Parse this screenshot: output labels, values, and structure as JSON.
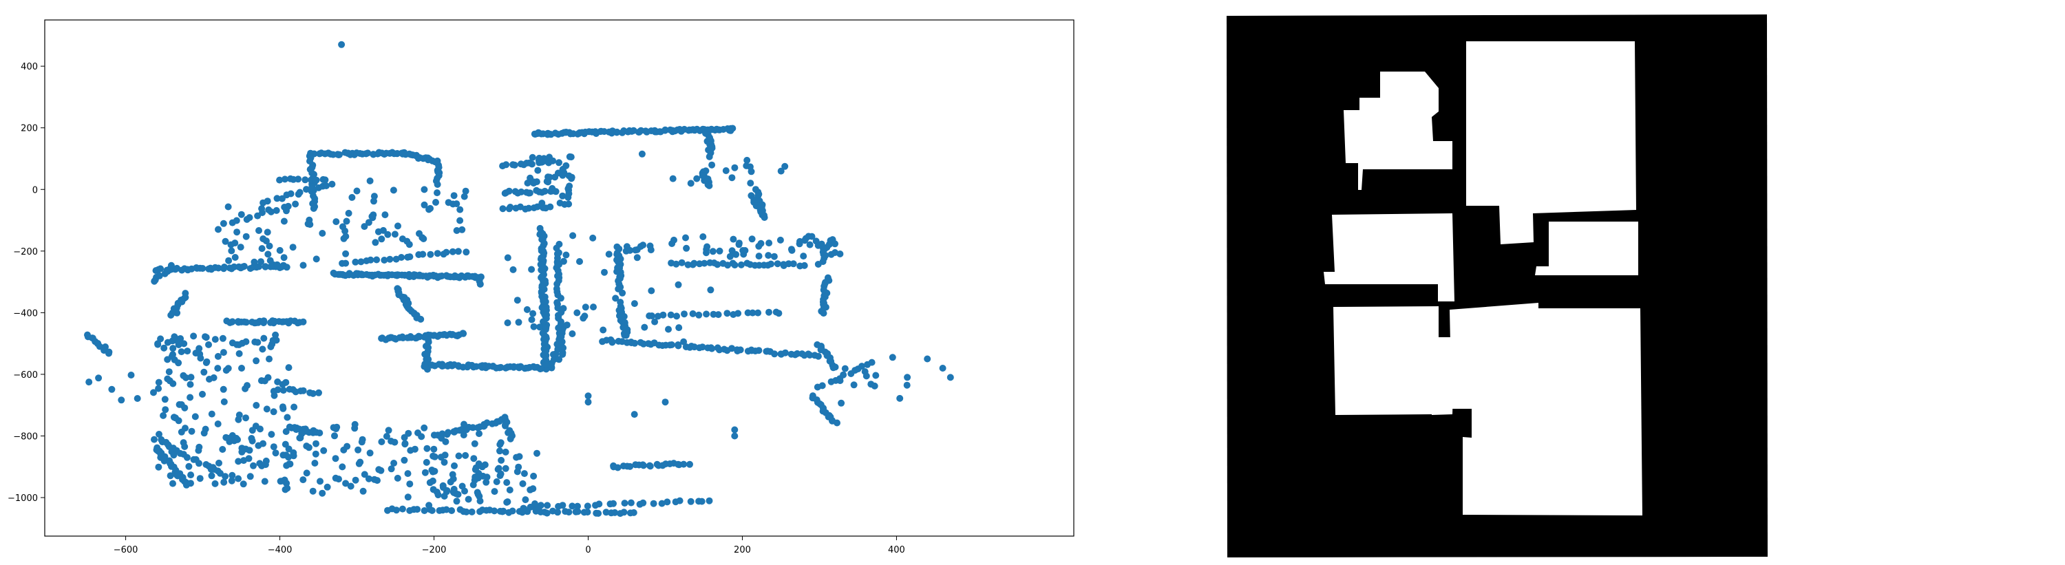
{
  "chart_data": [
    {
      "type": "scatter",
      "title": "",
      "xlabel": "",
      "ylabel": "",
      "xlim": [
        -705,
        630
      ],
      "ylim": [
        -1125,
        550
      ],
      "x_ticks": [
        -600,
        -400,
        -200,
        0,
        200,
        400
      ],
      "y_ticks": [
        -1000,
        -800,
        -600,
        -400,
        -200,
        0,
        200,
        400
      ],
      "grid": false,
      "legend": "none",
      "marker_color": "#1f77b4",
      "outliers": [
        {
          "x": -320,
          "y": 470
        },
        {
          "x": -300,
          "y": -5
        },
        {
          "x": 70,
          "y": 115
        },
        {
          "x": 110,
          "y": 35
        },
        {
          "x": 190,
          "y": -780
        },
        {
          "x": 190,
          "y": -800
        },
        {
          "x": 100,
          "y": -690
        },
        {
          "x": 60,
          "y": -730
        },
        {
          "x": 0,
          "y": -670
        },
        {
          "x": 0,
          "y": -690
        },
        {
          "x": -20,
          "y": -150
        },
        {
          "x": 440,
          "y": -550
        },
        {
          "x": 460,
          "y": -580
        },
        {
          "x": 470,
          "y": -610
        },
        {
          "x": 395,
          "y": -545
        }
      ],
      "segments": [
        {
          "x1": -72,
          "y1": 180,
          "x2": 190,
          "y2": 195,
          "n": 90
        },
        {
          "x1": -360,
          "y1": 115,
          "x2": -240,
          "y2": 118,
          "n": 40
        },
        {
          "x1": -240,
          "y1": 118,
          "x2": -195,
          "y2": 90,
          "n": 18
        },
        {
          "x1": -195,
          "y1": 88,
          "x2": -195,
          "y2": 20,
          "n": 10
        },
        {
          "x1": -360,
          "y1": 115,
          "x2": -355,
          "y2": -60,
          "n": 22
        },
        {
          "x1": -400,
          "y1": 30,
          "x2": -340,
          "y2": 35,
          "n": 10
        },
        {
          "x1": -420,
          "y1": -40,
          "x2": -330,
          "y2": 20,
          "n": 14
        },
        {
          "x1": -470,
          "y1": -110,
          "x2": -380,
          "y2": -50,
          "n": 12
        },
        {
          "x1": -560,
          "y1": -260,
          "x2": -390,
          "y2": -250,
          "n": 45
        },
        {
          "x1": -565,
          "y1": -300,
          "x2": -540,
          "y2": -250,
          "n": 8
        },
        {
          "x1": -330,
          "y1": -275,
          "x2": -140,
          "y2": -285,
          "n": 80
        },
        {
          "x1": -320,
          "y1": -240,
          "x2": -160,
          "y2": -200,
          "n": 22
        },
        {
          "x1": -140,
          "y1": -280,
          "x2": -140,
          "y2": -310,
          "n": 6
        },
        {
          "x1": -250,
          "y1": -320,
          "x2": -220,
          "y2": -420,
          "n": 20
        },
        {
          "x1": -270,
          "y1": -485,
          "x2": -160,
          "y2": -470,
          "n": 40
        },
        {
          "x1": -210,
          "y1": -490,
          "x2": -210,
          "y2": -580,
          "n": 12
        },
        {
          "x1": -210,
          "y1": -570,
          "x2": -50,
          "y2": -580,
          "n": 55
        },
        {
          "x1": -50,
          "y1": -580,
          "x2": -30,
          "y2": -440,
          "n": 18
        },
        {
          "x1": -60,
          "y1": -130,
          "x2": -55,
          "y2": -570,
          "n": 75
        },
        {
          "x1": -40,
          "y1": -180,
          "x2": -35,
          "y2": -550,
          "n": 35
        },
        {
          "x1": -110,
          "y1": -10,
          "x2": -40,
          "y2": -5,
          "n": 15
        },
        {
          "x1": -110,
          "y1": 80,
          "x2": -40,
          "y2": 90,
          "n": 15
        },
        {
          "x1": -110,
          "y1": -60,
          "x2": -50,
          "y2": -60,
          "n": 12
        },
        {
          "x1": 155,
          "y1": 180,
          "x2": 160,
          "y2": 110,
          "n": 14
        },
        {
          "x1": 150,
          "y1": 60,
          "x2": 155,
          "y2": 10,
          "n": 10
        },
        {
          "x1": 220,
          "y1": 0,
          "x2": 225,
          "y2": -80,
          "n": 15
        },
        {
          "x1": 210,
          "y1": -20,
          "x2": 230,
          "y2": -90,
          "n": 8
        },
        {
          "x1": 20,
          "y1": -490,
          "x2": 300,
          "y2": -540,
          "n": 60
        },
        {
          "x1": 40,
          "y1": -380,
          "x2": 50,
          "y2": -470,
          "n": 25
        },
        {
          "x1": 40,
          "y1": -190,
          "x2": 40,
          "y2": -320,
          "n": 20
        },
        {
          "x1": 50,
          "y1": -200,
          "x2": 80,
          "y2": -180,
          "n": 6
        },
        {
          "x1": 110,
          "y1": -240,
          "x2": 280,
          "y2": -245,
          "n": 30
        },
        {
          "x1": 80,
          "y1": -410,
          "x2": 250,
          "y2": -400,
          "n": 20
        },
        {
          "x1": 310,
          "y1": -290,
          "x2": 305,
          "y2": -400,
          "n": 18
        },
        {
          "x1": 300,
          "y1": -240,
          "x2": 315,
          "y2": -160,
          "n": 10
        },
        {
          "x1": 300,
          "y1": -500,
          "x2": 320,
          "y2": -580,
          "n": 14
        },
        {
          "x1": 290,
          "y1": -670,
          "x2": 320,
          "y2": -760,
          "n": 16
        },
        {
          "x1": 300,
          "y1": -640,
          "x2": 370,
          "y2": -560,
          "n": 12
        },
        {
          "x1": -470,
          "y1": -430,
          "x2": -370,
          "y2": -430,
          "n": 30
        },
        {
          "x1": -520,
          "y1": -340,
          "x2": -540,
          "y2": -410,
          "n": 12
        },
        {
          "x1": -650,
          "y1": -470,
          "x2": -620,
          "y2": -530,
          "n": 12
        },
        {
          "x1": -400,
          "y1": -650,
          "x2": -350,
          "y2": -660,
          "n": 10
        },
        {
          "x1": -560,
          "y1": -810,
          "x2": -470,
          "y2": -930,
          "n": 20
        },
        {
          "x1": -560,
          "y1": -840,
          "x2": -520,
          "y2": -960,
          "n": 20
        },
        {
          "x1": -390,
          "y1": -770,
          "x2": -350,
          "y2": -790,
          "n": 15
        },
        {
          "x1": -200,
          "y1": -800,
          "x2": -110,
          "y2": -750,
          "n": 24
        },
        {
          "x1": -110,
          "y1": -740,
          "x2": -100,
          "y2": -810,
          "n": 10
        },
        {
          "x1": -260,
          "y1": -1040,
          "x2": 60,
          "y2": -1050,
          "n": 50
        },
        {
          "x1": 30,
          "y1": -900,
          "x2": 130,
          "y2": -890,
          "n": 22
        },
        {
          "x1": -70,
          "y1": -1030,
          "x2": 160,
          "y2": -1010,
          "n": 25
        }
      ],
      "clusters": [
        {
          "x1": -560,
          "x2": -380,
          "y1": -960,
          "y2": -470,
          "n": 180
        },
        {
          "x1": -400,
          "x2": -110,
          "y1": -1000,
          "y2": -760,
          "n": 110
        },
        {
          "x1": -480,
          "x2": -300,
          "y1": -250,
          "y2": -50,
          "n": 40
        },
        {
          "x1": -320,
          "x2": -150,
          "y1": -180,
          "y2": 30,
          "n": 45
        },
        {
          "x1": -210,
          "x2": -60,
          "y1": -1050,
          "y2": -850,
          "n": 60
        },
        {
          "x1": -110,
          "x2": 160,
          "y1": -500,
          "y2": -150,
          "n": 50
        },
        {
          "x1": 100,
          "x2": 330,
          "y1": -220,
          "y2": -150,
          "n": 45
        },
        {
          "x1": 130,
          "x2": 310,
          "y1": 100,
          "y2": 0,
          "n": 14
        },
        {
          "x1": -80,
          "x2": -20,
          "y1": 110,
          "y2": -50,
          "n": 40
        },
        {
          "x1": -660,
          "x2": -540,
          "y1": -600,
          "y2": -700,
          "n": 10
        },
        {
          "x1": 320,
          "x2": 420,
          "y1": -560,
          "y2": -700,
          "n": 12
        }
      ]
    }
  ],
  "map_panel": {
    "background": "#000000",
    "free_space": "#ffffff"
  }
}
